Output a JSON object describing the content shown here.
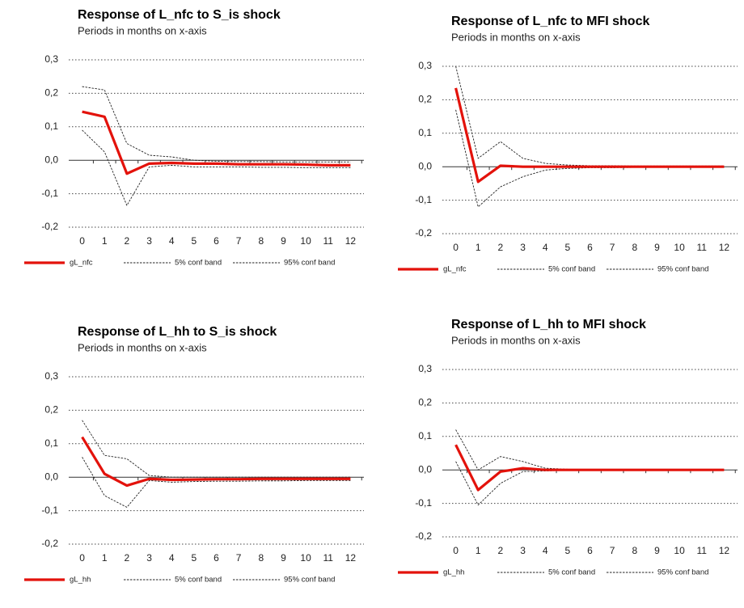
{
  "chart_data": [
    {
      "type": "line",
      "title": "Response of L_nfc to S_is shock",
      "subtitle": "Periods in months on x-axis",
      "x": [
        0,
        1,
        2,
        3,
        4,
        5,
        6,
        7,
        8,
        9,
        10,
        11,
        12
      ],
      "xlim": [
        -0.6,
        12.6
      ],
      "xticks": [
        0,
        1,
        2,
        3,
        4,
        5,
        6,
        7,
        8,
        9,
        10,
        11,
        12
      ],
      "ylim": [
        -0.2,
        0.3
      ],
      "yticks": [
        {
          "value": 0.3,
          "label": "0,3"
        },
        {
          "value": 0.2,
          "label": "0,2"
        },
        {
          "value": 0.1,
          "label": "0,1"
        },
        {
          "value": 0,
          "label": "0,0"
        },
        {
          "value": -0.1,
          "label": "-0,1"
        },
        {
          "value": -0.2,
          "label": "-0,2"
        }
      ],
      "grid": true,
      "series": [
        {
          "name": "gL_nfc",
          "color": "#e3120b",
          "style": "solid",
          "values": [
            0.145,
            0.13,
            -0.04,
            -0.01,
            -0.008,
            -0.01,
            -0.01,
            -0.012,
            -0.012,
            -0.012,
            -0.013,
            -0.015,
            -0.015
          ]
        },
        {
          "name": "5% conf band",
          "color": "#222222",
          "style": "dashed",
          "values": [
            0.09,
            0.025,
            -0.135,
            -0.02,
            -0.015,
            -0.02,
            -0.02,
            -0.02,
            -0.021,
            -0.021,
            -0.022,
            -0.022,
            -0.022
          ]
        },
        {
          "name": "95% conf band",
          "color": "#222222",
          "style": "dashed",
          "values": [
            0.22,
            0.21,
            0.05,
            0.015,
            0.01,
            0.0,
            -0.003,
            -0.004,
            -0.004,
            -0.005,
            -0.005,
            -0.005,
            -0.005
          ]
        }
      ]
    },
    {
      "type": "line",
      "title": "Response of L_nfc to MFI shock",
      "subtitle": "Periods in months on x-axis",
      "x": [
        0,
        1,
        2,
        3,
        4,
        5,
        6,
        7,
        8,
        9,
        10,
        11,
        12
      ],
      "xlim": [
        -0.6,
        12.6
      ],
      "xticks": [
        0,
        1,
        2,
        3,
        4,
        5,
        6,
        7,
        8,
        9,
        10,
        11,
        12
      ],
      "ylim": [
        -0.2,
        0.3
      ],
      "yticks": [
        {
          "value": 0.3,
          "label": "0,3"
        },
        {
          "value": 0.2,
          "label": "0,2"
        },
        {
          "value": 0.1,
          "label": "0,1"
        },
        {
          "value": 0,
          "label": "0,0"
        },
        {
          "value": -0.1,
          "label": "-0,1"
        },
        {
          "value": -0.2,
          "label": "-0,2"
        }
      ],
      "grid": true,
      "series": [
        {
          "name": "gL_nfc",
          "color": "#e3120b",
          "style": "solid",
          "values": [
            0.235,
            -0.045,
            0.003,
            0.0,
            0.0,
            0.0,
            0.0,
            0.0,
            0.0,
            0.0,
            0.0,
            0.0,
            0.0
          ]
        },
        {
          "name": "5% conf band",
          "color": "#222222",
          "style": "dashed",
          "values": [
            0.17,
            -0.12,
            -0.06,
            -0.03,
            -0.01,
            -0.005,
            -0.003,
            -0.003,
            -0.002,
            -0.002,
            -0.002,
            -0.002,
            -0.002
          ]
        },
        {
          "name": "95% conf band",
          "color": "#222222",
          "style": "dashed",
          "values": [
            0.3,
            0.025,
            0.075,
            0.025,
            0.01,
            0.005,
            0.003,
            0.003,
            0.002,
            0.002,
            0.002,
            0.002,
            0.002
          ]
        }
      ]
    },
    {
      "type": "line",
      "title": "Response of L_hh to S_is shock",
      "subtitle": "Periods in months on x-axis",
      "x": [
        0,
        1,
        2,
        3,
        4,
        5,
        6,
        7,
        8,
        9,
        10,
        11,
        12
      ],
      "xlim": [
        -0.6,
        12.6
      ],
      "xticks": [
        0,
        1,
        2,
        3,
        4,
        5,
        6,
        7,
        8,
        9,
        10,
        11,
        12
      ],
      "ylim": [
        -0.2,
        0.3
      ],
      "yticks": [
        {
          "value": 0.3,
          "label": "0,3"
        },
        {
          "value": 0.2,
          "label": "0,2"
        },
        {
          "value": 0.1,
          "label": "0,1"
        },
        {
          "value": 0,
          "label": "0,0"
        },
        {
          "value": -0.1,
          "label": "-0,1"
        },
        {
          "value": -0.2,
          "label": "-0,2"
        }
      ],
      "grid": true,
      "series": [
        {
          "name": "gL_hh",
          "color": "#e3120b",
          "style": "solid",
          "values": [
            0.12,
            0.01,
            -0.025,
            -0.005,
            -0.008,
            -0.007,
            -0.006,
            -0.006,
            -0.005,
            -0.005,
            -0.005,
            -0.005,
            -0.005
          ]
        },
        {
          "name": "5% conf band",
          "color": "#222222",
          "style": "dashed",
          "values": [
            0.06,
            -0.055,
            -0.09,
            -0.01,
            -0.015,
            -0.013,
            -0.012,
            -0.012,
            -0.011,
            -0.011,
            -0.01,
            -0.01,
            -0.01
          ]
        },
        {
          "name": "95% conf band",
          "color": "#222222",
          "style": "dashed",
          "values": [
            0.17,
            0.065,
            0.055,
            0.005,
            0.0,
            0.0,
            0.0,
            0.0,
            0.0,
            0.0,
            0.0,
            0.0,
            0.0
          ]
        }
      ]
    },
    {
      "type": "line",
      "title": "Response of L_hh to MFI shock",
      "subtitle": "Periods in months on x-axis",
      "x": [
        0,
        1,
        2,
        3,
        4,
        5,
        6,
        7,
        8,
        9,
        10,
        11,
        12
      ],
      "xlim": [
        -0.6,
        12.6
      ],
      "xticks": [
        0,
        1,
        2,
        3,
        4,
        5,
        6,
        7,
        8,
        9,
        10,
        11,
        12
      ],
      "ylim": [
        -0.2,
        0.3
      ],
      "yticks": [
        {
          "value": 0.3,
          "label": "0,3"
        },
        {
          "value": 0.2,
          "label": "0,2"
        },
        {
          "value": 0.1,
          "label": "0,1"
        },
        {
          "value": 0,
          "label": "0,0"
        },
        {
          "value": -0.1,
          "label": "-0,1"
        },
        {
          "value": -0.2,
          "label": "-0,2"
        }
      ],
      "grid": true,
      "series": [
        {
          "name": "gL_hh",
          "color": "#e3120b",
          "style": "solid",
          "values": [
            0.075,
            -0.06,
            -0.005,
            0.005,
            0.0,
            0.0,
            0.0,
            0.0,
            0.0,
            0.0,
            0.0,
            0.0,
            0.0
          ]
        },
        {
          "name": "5% conf band",
          "color": "#222222",
          "style": "dashed",
          "values": [
            0.025,
            -0.105,
            -0.04,
            -0.005,
            -0.003,
            -0.001,
            0.0,
            0.0,
            0.0,
            0.0,
            0.0,
            0.0,
            0.0
          ]
        },
        {
          "name": "95% conf band",
          "color": "#222222",
          "style": "dashed",
          "values": [
            0.12,
            0.0,
            0.04,
            0.025,
            0.005,
            0.002,
            0.0,
            0.0,
            0.0,
            0.0,
            0.0,
            0.0,
            0.0
          ]
        }
      ]
    }
  ]
}
